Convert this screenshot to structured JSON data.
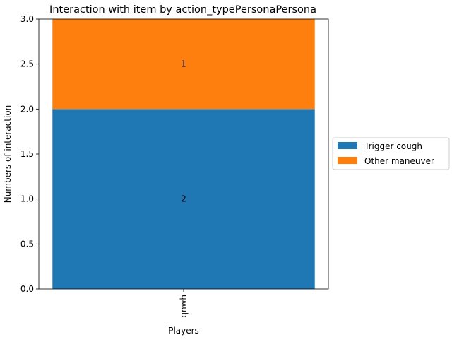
{
  "chart_data": {
    "type": "bar",
    "stacked": true,
    "title": "Interaction with item by action_typePersonaPersona",
    "xlabel": "Players",
    "ylabel": "Numbers of interaction",
    "categories": [
      "qnwh"
    ],
    "ylim": [
      0,
      3.0
    ],
    "yticks": [
      "0.0",
      "0.5",
      "1.0",
      "1.5",
      "2.0",
      "2.5",
      "3.0"
    ],
    "ytick_values": [
      0,
      0.5,
      1.0,
      1.5,
      2.0,
      2.5,
      3.0
    ],
    "grid": false,
    "legend_position": "outside-right",
    "series": [
      {
        "name": "Trigger cough",
        "values": [
          2
        ],
        "color": "#1f77b4",
        "label": "2"
      },
      {
        "name": "Other maneuver",
        "values": [
          1
        ],
        "color": "#ff7f0e",
        "label": "1"
      }
    ]
  }
}
